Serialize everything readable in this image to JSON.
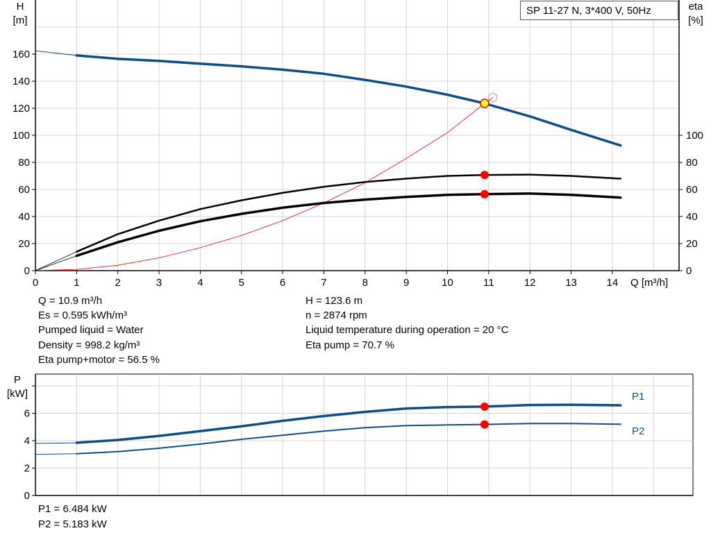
{
  "chart_data": [
    {
      "type": "line",
      "title": "SP 11-27 N, 3*400 V, 50Hz",
      "xlabel": "Q [m³/h]",
      "ylabel_left": {
        "name": "H",
        "unit": "[m]"
      },
      "ylabel_right": {
        "name": "eta",
        "unit": "[%]"
      },
      "xlim": [
        0,
        15.6
      ],
      "ylim": [
        0,
        200
      ],
      "x_ticks": [
        0,
        1,
        2,
        3,
        4,
        5,
        6,
        7,
        8,
        9,
        10,
        11,
        12,
        13,
        14
      ],
      "y_ticks_left": [
        0,
        20,
        40,
        60,
        80,
        100,
        120,
        140,
        160
      ],
      "y_ticks_right": [
        0,
        20,
        40,
        60,
        80,
        100
      ],
      "grid": true,
      "series": [
        {
          "id": "H",
          "axis": "left",
          "color": "#0f4c8a",
          "x": [
            0,
            1,
            2,
            3,
            4,
            5,
            6,
            7,
            8,
            9,
            10,
            10.9,
            12,
            13,
            14.2
          ],
          "y": [
            162.5,
            159,
            156.5,
            155,
            153,
            151,
            148.5,
            145.5,
            141,
            136,
            130,
            123.6,
            114,
            104,
            92.5
          ]
        },
        {
          "id": "eta_pump",
          "axis": "right",
          "color": "#000000",
          "x": [
            0,
            1,
            2,
            3,
            4,
            5,
            6,
            7,
            8,
            9,
            10,
            10.9,
            12,
            13,
            14.2
          ],
          "y": [
            0,
            14,
            27,
            37,
            45.5,
            52,
            57.5,
            62,
            65.5,
            68,
            70,
            70.7,
            71,
            70,
            68
          ]
        },
        {
          "id": "eta_pump_motor",
          "axis": "right",
          "color": "#000000",
          "x": [
            0,
            1,
            2,
            3,
            4,
            5,
            6,
            7,
            8,
            9,
            10,
            10.9,
            12,
            13,
            14.2
          ],
          "y": [
            0,
            11,
            21,
            29.5,
            36.5,
            42,
            46.5,
            50,
            52.5,
            54.5,
            56,
            56.5,
            57,
            56,
            54
          ]
        },
        {
          "id": "system_curve",
          "axis": "left",
          "color": "#ff0000",
          "x": [
            0,
            1,
            2,
            3,
            4,
            5,
            6,
            7,
            8,
            9,
            10,
            10.9,
            11.1
          ],
          "y": [
            0,
            1,
            4,
            9.5,
            17,
            26,
            37,
            50,
            65,
            83,
            102,
            123.6,
            128
          ]
        }
      ],
      "duty_point": {
        "Q": 10.9,
        "H": 123.6,
        "eta_pump": 70.7,
        "eta_pump_motor": 56.5
      }
    },
    {
      "type": "line",
      "ylabel": {
        "name": "P",
        "unit": "[kW]"
      },
      "xlim": [
        0,
        15.6
      ],
      "ylim": [
        0,
        8
      ],
      "y_ticks": [
        0,
        2,
        4,
        6
      ],
      "grid": true,
      "series": [
        {
          "name": "P1",
          "color": "#0f4c8a",
          "x": [
            0,
            1,
            2,
            3,
            4,
            5,
            6,
            7,
            8,
            9,
            10,
            10.9,
            12,
            13,
            14.2
          ],
          "y": [
            3.8,
            3.85,
            4.05,
            4.35,
            4.7,
            5.05,
            5.45,
            5.8,
            6.1,
            6.35,
            6.45,
            6.484,
            6.6,
            6.62,
            6.58
          ]
        },
        {
          "name": "P2",
          "color": "#0f4c8a",
          "x": [
            0,
            1,
            2,
            3,
            4,
            5,
            6,
            7,
            8,
            9,
            10,
            10.9,
            12,
            13,
            14.2
          ],
          "y": [
            3.0,
            3.05,
            3.2,
            3.45,
            3.75,
            4.1,
            4.4,
            4.7,
            4.95,
            5.1,
            5.15,
            5.183,
            5.25,
            5.25,
            5.2
          ]
        }
      ],
      "duty_point": {
        "Q": 10.9,
        "P1": 6.484,
        "P2": 5.183
      }
    }
  ],
  "info_left": [
    "Q = 10.9 m³/h",
    "Es = 0.595 kWh/m³",
    "Pumped liquid = Water",
    "Density = 998.2 kg/m³",
    "Eta pump+motor = 56.5 %"
  ],
  "info_right": [
    "H = 123.6 m",
    "n = 2874 rpm",
    "Liquid temperature during operation = 20 °C",
    "Eta pump = 70.7 %"
  ],
  "power_info": [
    "P1 = 6.484 kW",
    "P2 = 5.183 kW"
  ]
}
